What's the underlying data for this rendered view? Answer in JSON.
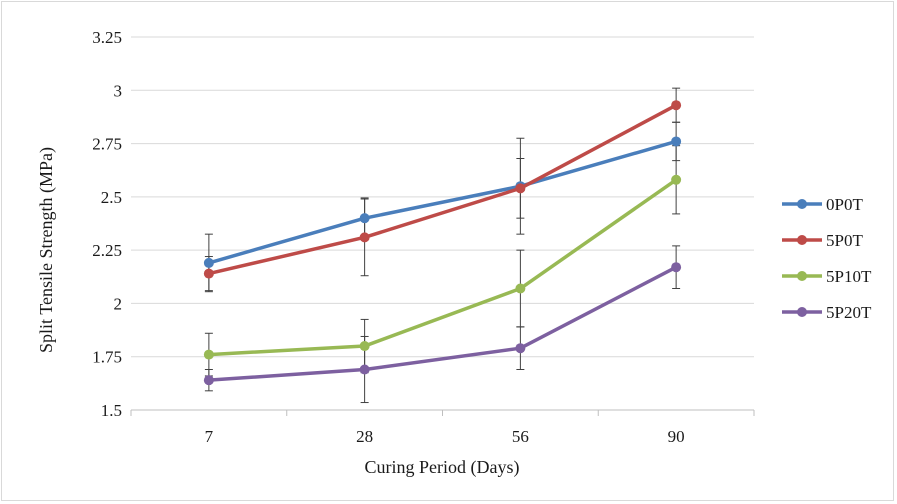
{
  "chart_data": {
    "type": "line",
    "title": "",
    "xlabel": "Curing Period (Days)",
    "ylabel": "Split Tensile Strength (MPa)",
    "categories": [
      "7",
      "28",
      "56",
      "90"
    ],
    "ylim": [
      1.5,
      3.25
    ],
    "yticks": [
      "1.5",
      "1.75",
      "2",
      "2.25",
      "2.5",
      "2.75",
      "3",
      "3.25"
    ],
    "grid": "horizontal",
    "legend_position": "right",
    "series": [
      {
        "name": "0P0T",
        "color": "#4a7ebb",
        "values": [
          2.19,
          2.4,
          2.55,
          2.76
        ],
        "error": [
          0.135,
          0.095,
          0.225,
          0.09
        ]
      },
      {
        "name": "5P0T",
        "color": "#be4b48",
        "values": [
          2.14,
          2.31,
          2.54,
          2.93
        ],
        "error": [
          0.08,
          0.18,
          0.14,
          0.08
        ]
      },
      {
        "name": "5P10T",
        "color": "#98b954",
        "values": [
          1.76,
          1.8,
          2.07,
          2.58
        ],
        "error": [
          0.1,
          0.125,
          0.18,
          0.16
        ]
      },
      {
        "name": "5P20T",
        "color": "#7d60a0",
        "values": [
          1.64,
          1.69,
          1.79,
          2.17
        ],
        "error": [
          0.05,
          0.155,
          0.1,
          0.1
        ]
      }
    ]
  }
}
